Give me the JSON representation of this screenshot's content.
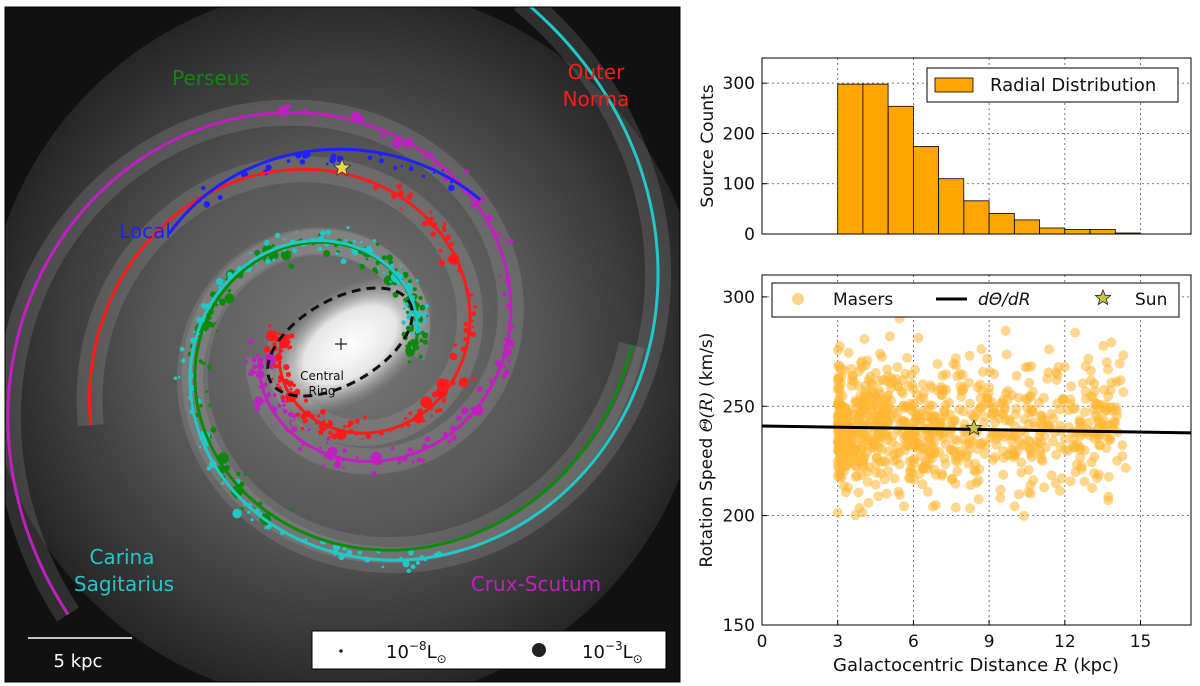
{
  "galaxy_map": {
    "arm_labels": {
      "perseus": "Perseus",
      "outer": "Outer",
      "norma": "Norma",
      "local": "Local",
      "carina": "Carina",
      "sagitarius": "Sagitarius",
      "crux_scutum": "Crux-Scutum",
      "central_ring_1": "Central",
      "central_ring_2": "Ring"
    },
    "scale_bar_label": "5 kpc",
    "size_legend": {
      "small_label": "10",
      "small_exp": "−8",
      "large_label": "10",
      "large_exp": "−3",
      "unit": "L",
      "unit_sub": "⊙"
    },
    "colors": {
      "perseus": "#0d8a0d",
      "norma": "#ff1a1a",
      "local": "#1f1fff",
      "carina": "#22c8c8",
      "crux": "#c020c0",
      "sun": "#e6d84a"
    }
  },
  "chart_data": [
    {
      "type": "bar",
      "title": "",
      "xlabel": "",
      "ylabel": "Source Counts",
      "legend": "Radial Distribution",
      "legend_position": "top-right",
      "bin_edges": [
        3,
        4,
        5,
        6,
        7,
        8,
        9,
        10,
        11,
        12,
        13,
        14
      ],
      "values": [
        298,
        298,
        254,
        174,
        110,
        66,
        41,
        28,
        12,
        9,
        9,
        2
      ],
      "xlim": [
        0,
        17
      ],
      "ylim": [
        0,
        350
      ],
      "yticks": [
        "0",
        "100",
        "200",
        "300"
      ],
      "color": "#ffa500",
      "grid": true
    },
    {
      "type": "scatter",
      "title": "",
      "xlabel_text": "Galactocentric Distance",
      "xlabel_var": "R",
      "xlabel_unit": "(kpc)",
      "ylabel_text": "Rotation Speed",
      "ylabel_var": "Θ(R)",
      "ylabel_unit": "(km/s)",
      "xlim": [
        0,
        17
      ],
      "ylim": [
        150,
        310
      ],
      "xticks": [
        "0",
        "3",
        "6",
        "9",
        "12",
        "15"
      ],
      "yticks": [
        "150",
        "200",
        "250",
        "300"
      ],
      "legend": [
        "Masers",
        "dΘ/dR",
        "Sun"
      ],
      "legend_position": "top",
      "series": [
        {
          "name": "Masers",
          "cloud": {
            "x_range": [
              3,
              14.5
            ],
            "y_center": 240,
            "count": 900
          }
        },
        {
          "name": "dΘ/dR",
          "line": {
            "x": [
              0,
              17
            ],
            "y": [
              241,
              237.8
            ]
          }
        },
        {
          "name": "Sun",
          "point": {
            "x": 8.4,
            "y": 240
          }
        }
      ],
      "grid": true,
      "color": "#ffb733"
    }
  ]
}
